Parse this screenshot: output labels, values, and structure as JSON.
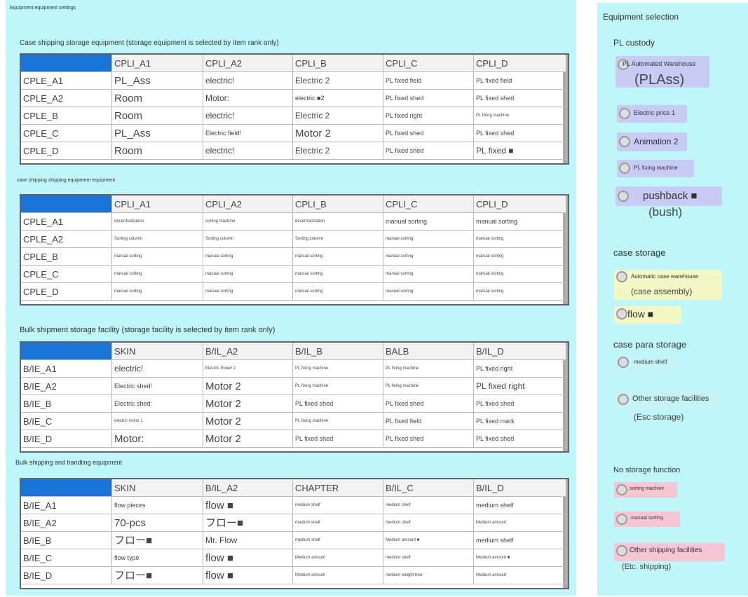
{
  "header": {
    "title": "Equipment equipment settings"
  },
  "tables": [
    {
      "title": "Case shipping storage equipment (storage equipment is selected by item rank only)",
      "header": [
        "CPLI_A1",
        "CPLI_A2",
        "CPLI_B",
        "CPLI_C",
        "CPLI_D"
      ],
      "rows": [
        [
          "CPLE_A1",
          "PL_Ass",
          "electric!",
          "Electric 2",
          "PL fixed field",
          "PL fixed field"
        ],
        [
          "CPLE_A2",
          "Room",
          "Motor:",
          "electric ■2",
          "PL fixed shed",
          "PL fixed shed"
        ],
        [
          "CPLE_B",
          "Room",
          "electric!",
          "Electric 2",
          "PL fixed right",
          "PL fixing machine"
        ],
        [
          "CPLE_C",
          "PL_Ass",
          "Electric field!",
          "Motor 2",
          "PL fixed shed",
          "PL fixed shed"
        ],
        [
          "CPLE_D",
          "Room",
          "electric!",
          "Electric 2",
          "PL fixed shed",
          "PL fixed ■"
        ]
      ]
    },
    {
      "title": "case shipping shipping equipment equipment",
      "header": [
        "CPLI_A1",
        "CPLI_A2",
        "CPLI_B",
        "CPLI_C",
        "CPLI_D"
      ],
      "rows": [
        [
          "CPLE_A1",
          "decentralization",
          "sorting machine",
          "decentralization",
          "manual sorting",
          "manual sorting"
        ],
        [
          "CPLE_A2",
          "Sorting column",
          "Sorting column",
          "Sorting column",
          "manual sorting",
          "manual sorting"
        ],
        [
          "CPLE_B",
          "manual sorting",
          "manual sorting",
          "manual sorting",
          "manual sorting",
          "manual sorting"
        ],
        [
          "CPLE_C",
          "manual sorting",
          "manual sorting",
          "manual sorting",
          "manual sorting",
          "manual sorting"
        ],
        [
          "CPLE_D",
          "manual sorting",
          "manual sorting",
          "manual sorting",
          "manual sorting",
          "manual sorting"
        ]
      ]
    },
    {
      "title": "Bulk shipment storage facility (storage facility is selected by item rank only)",
      "header": [
        "SKIN",
        "B/IL_A2",
        "B/IL_B",
        "BALB",
        "B/IL_D"
      ],
      "rows": [
        [
          "B/IE_A1",
          "electric!",
          "Electric Power 2",
          "PL fixing machine",
          "PL fixing machine",
          "PL fixed right"
        ],
        [
          "B/IE_A2",
          "Electric shed!",
          "Motor 2",
          "PL fixing machine",
          "PL fixing machine",
          "PL fixed right"
        ],
        [
          "B/IE_B",
          "Electric shed:",
          "Motor 2",
          "PL fixed shed",
          "PL fixed shed",
          "PL fixed shed"
        ],
        [
          "B/IE_C",
          "electric motor 1",
          "Motor 2",
          "PL fixing machine",
          "PL fixed field",
          "PL fixed mark"
        ],
        [
          "B/IE_D",
          "Motor:",
          "Motor 2",
          "PL fixed shed",
          "PL fixed shed",
          "PL fixed shed"
        ]
      ]
    },
    {
      "title": "Bulk shipping and handling equipment",
      "header": [
        "SKIN",
        "B/IL_A2",
        "CHAPTER",
        "B/IL_C",
        "B/IL_D"
      ],
      "rows": [
        [
          "B/IE_A1",
          "flow pieces",
          "flow ■",
          "medium shelf",
          "medium shelf",
          "medium shelf"
        ],
        [
          "B/IE_A2",
          "70-pcs",
          "フロー■",
          "medium shelf",
          "medium shelf",
          "Medium amount"
        ],
        [
          "B/IE_B",
          "フロー■",
          "Mr. Flow",
          "medium shelf",
          "Medium amount ■",
          "medium shelf"
        ],
        [
          "B/IE_C",
          "flow type",
          "flow ■",
          "Medium amount",
          "medium shelf",
          "Medium amount ■"
        ],
        [
          "B/IE_D",
          "フロー■",
          "flow ■",
          "Medium amount",
          "medium weight tree",
          "Medium amount"
        ]
      ]
    }
  ],
  "selection": {
    "title": "Equipment selection",
    "groups": [
      {
        "title": "PL custody",
        "options": [
          {
            "label": "PL Automated Warehouse",
            "sub": "(PLAss)"
          },
          {
            "label": "Electric price 1"
          },
          {
            "label": "Animation 2"
          },
          {
            "label": "PL fixing machine"
          },
          {
            "label": "pushback ■",
            "sub": "(bush)"
          }
        ]
      },
      {
        "title": "case storage",
        "options": [
          {
            "label": "Automatic case warehouse",
            "sub": "(case assembly)"
          },
          {
            "label": "flow ■"
          }
        ]
      },
      {
        "title": "case para storage",
        "options": [
          {
            "label": "medium shelf"
          },
          {
            "label": "Other storage facilities",
            "sub": "(Esc storage)"
          }
        ]
      },
      {
        "title": "No storage function",
        "options": [
          {
            "label": "sorting machine"
          },
          {
            "label": "manual sorting"
          },
          {
            "label": "Other shipping facilities",
            "sub": "(Etc. shipping)"
          }
        ]
      }
    ]
  }
}
